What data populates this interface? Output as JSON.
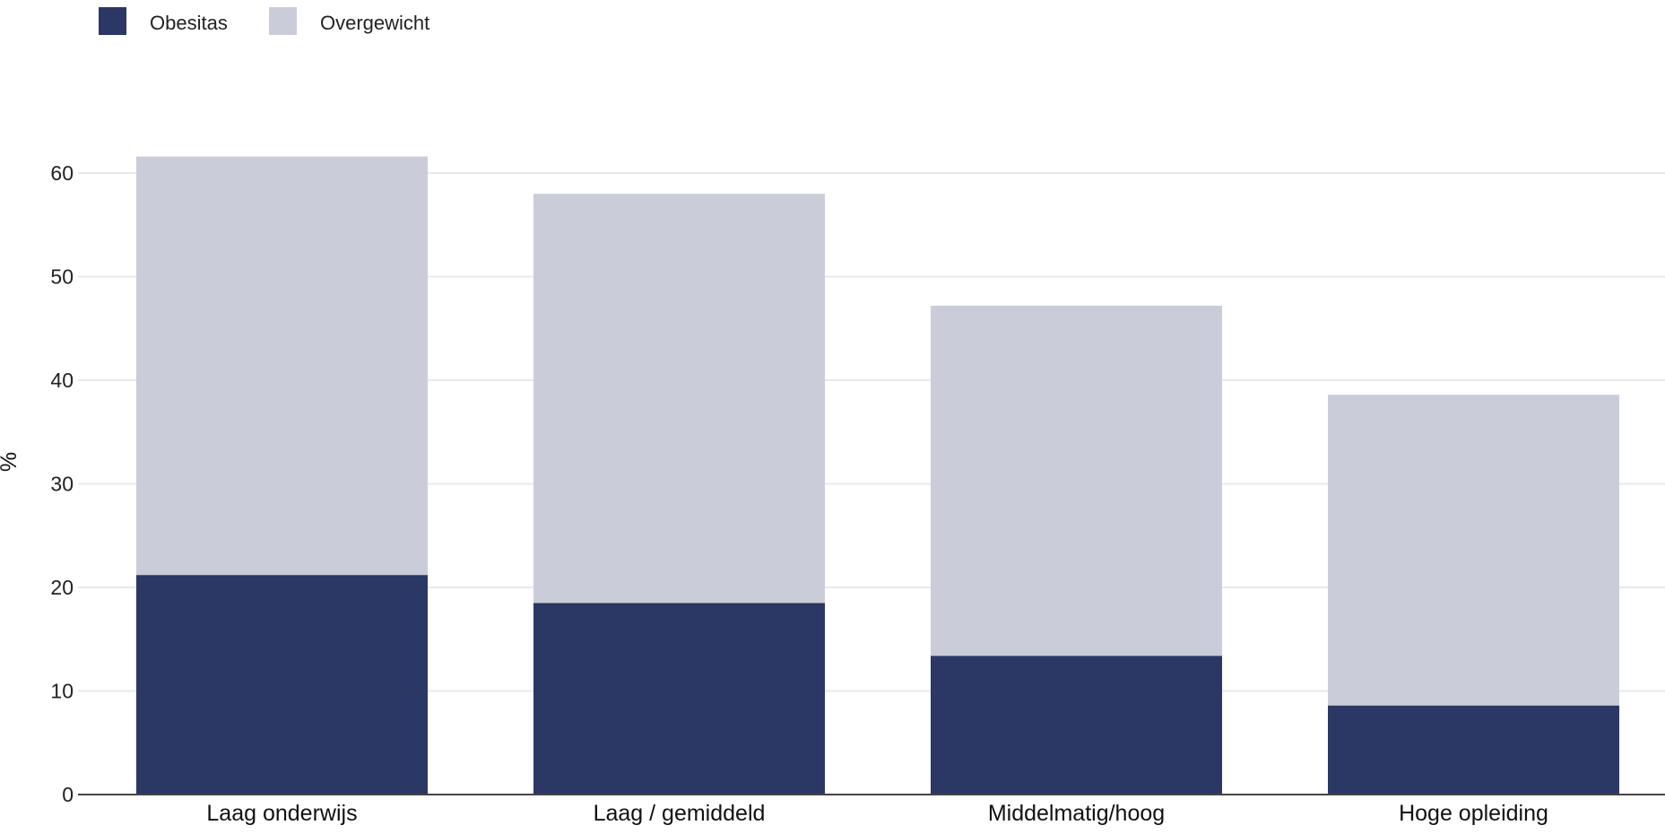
{
  "chart_data": {
    "type": "bar",
    "stacked": true,
    "categories": [
      "Laag onderwijs",
      "Laag / gemiddeld",
      "Middelmatig/hoog",
      "Hoge opleiding"
    ],
    "series": [
      {
        "name": "Obesitas",
        "values": [
          21.2,
          18.5,
          13.4,
          8.6
        ],
        "color": "#2b3764"
      },
      {
        "name": "Overgewicht",
        "values": [
          40.4,
          39.5,
          33.8,
          30.0
        ],
        "color": "#cacdd9"
      }
    ],
    "ylabel": "%",
    "ylim": [
      0,
      70
    ],
    "yticks": [
      0,
      10,
      20,
      30,
      40,
      50,
      60
    ],
    "grid": true,
    "legend_position": "top-left"
  }
}
